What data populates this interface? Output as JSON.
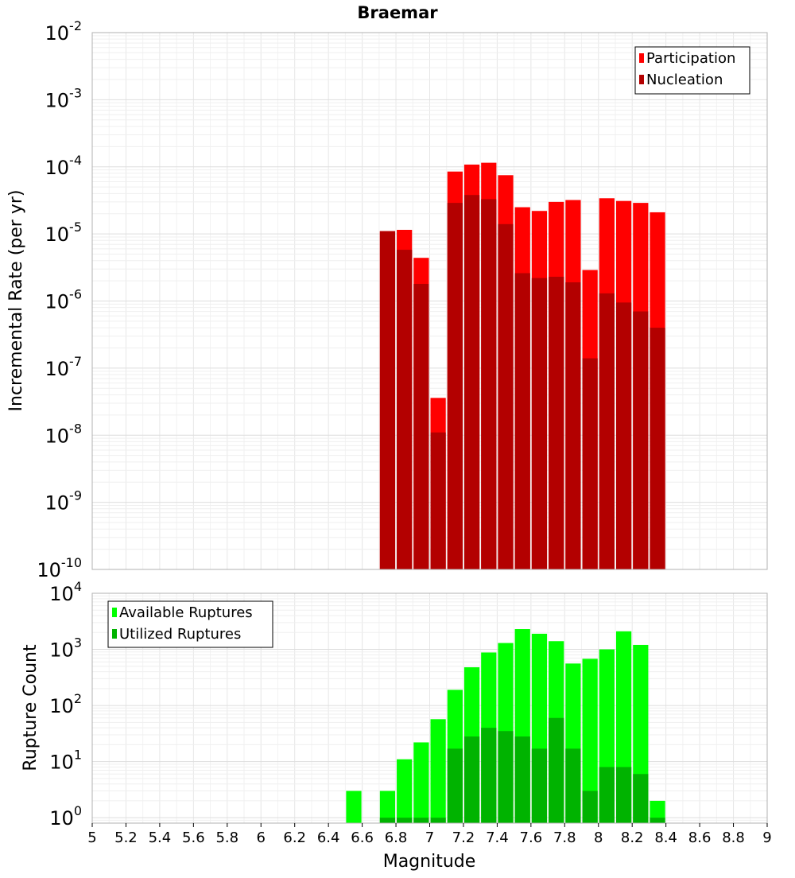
{
  "chart_data": [
    {
      "type": "bar",
      "title": "Braemar",
      "ylabel": "Incremental Rate (per yr)",
      "yscale": "log",
      "ylim": [
        1e-10,
        0.01
      ],
      "xlim": [
        5,
        9
      ],
      "y_tick_exponents": [
        "-2",
        "-3",
        "-4",
        "-5",
        "-6",
        "-7",
        "-8",
        "-9",
        "-10"
      ],
      "y_tick_base": "10",
      "grid": true,
      "legend": "top-right",
      "overlay": true,
      "x": [
        6.75,
        6.85,
        6.95,
        7.05,
        7.15,
        7.25,
        7.35,
        7.45,
        7.55,
        7.65,
        7.75,
        7.85,
        7.95,
        8.05,
        8.15,
        8.25,
        8.35
      ],
      "series": [
        {
          "name": "Participation",
          "color": "#ff0000",
          "values": [
            1.1e-05,
            1.15e-05,
            4.4e-06,
            3.6e-08,
            8.5e-05,
            0.000108,
            0.000115,
            7.5e-05,
            2.5e-05,
            2.2e-05,
            3e-05,
            3.2e-05,
            2.9e-06,
            3.4e-05,
            3.1e-05,
            2.9e-05,
            2.1e-05
          ]
        },
        {
          "name": "Nucleation",
          "color": "#b30000",
          "values": [
            1.1e-05,
            5.8e-06,
            1.8e-06,
            1.1e-08,
            2.9e-05,
            3.8e-05,
            3.3e-05,
            1.4e-05,
            2.6e-06,
            2.2e-06,
            2.3e-06,
            1.9e-06,
            1.4e-07,
            1.3e-06,
            9.5e-07,
            7e-07,
            4e-07
          ]
        }
      ]
    },
    {
      "type": "bar",
      "xlabel": "Magnitude",
      "ylabel": "Rupture Count",
      "yscale": "log",
      "ylim": [
        0.8,
        10000
      ],
      "xlim": [
        5,
        9
      ],
      "y_tick_exponents": [
        "4",
        "3",
        "2",
        "1",
        "0"
      ],
      "y_tick_base": "10",
      "x_ticks": [
        "5",
        "5.2",
        "5.4",
        "5.6",
        "5.8",
        "6",
        "6.2",
        "6.4",
        "6.6",
        "6.8",
        "7",
        "7.2",
        "7.4",
        "7.6",
        "7.8",
        "8",
        "8.2",
        "8.4",
        "8.6",
        "8.8",
        "9"
      ],
      "grid": true,
      "legend": "top-left",
      "overlay": true,
      "x": [
        6.55,
        6.75,
        6.85,
        6.95,
        7.05,
        7.15,
        7.25,
        7.35,
        7.45,
        7.55,
        7.65,
        7.75,
        7.85,
        7.95,
        8.05,
        8.15,
        8.25,
        8.35
      ],
      "series": [
        {
          "name": "Available Ruptures",
          "color": "#00ff00",
          "values": [
            3,
            3,
            11,
            22,
            57,
            190,
            480,
            880,
            1300,
            2300,
            1900,
            1400,
            560,
            680,
            1000,
            2100,
            1200,
            2
          ]
        },
        {
          "name": "Utilized Ruptures",
          "color": "#00b300",
          "values": [
            0,
            1,
            1,
            1,
            1,
            17,
            28,
            40,
            35,
            28,
            17,
            60,
            17,
            3,
            8,
            8,
            6,
            1
          ]
        }
      ]
    }
  ]
}
